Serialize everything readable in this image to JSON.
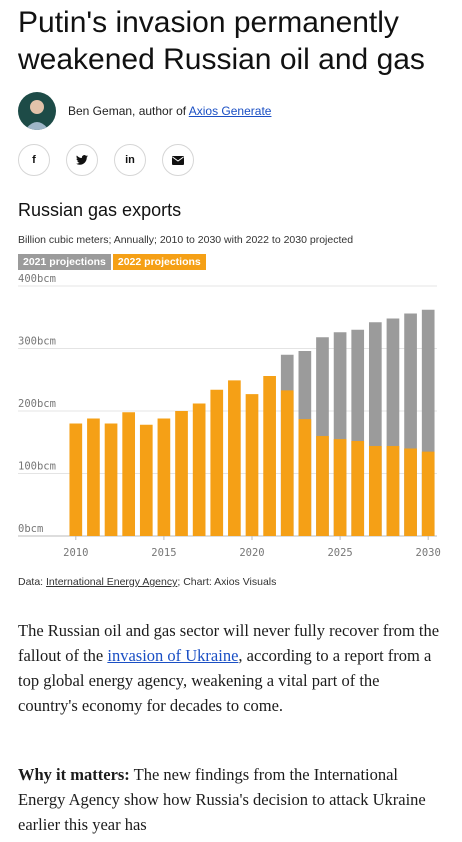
{
  "article": {
    "headline": "Putin's invasion permanently weakened Russian oil and gas",
    "author_prefix": "Ben Geman, author of ",
    "author_link": "Axios Generate"
  },
  "share": {
    "facebook": "f",
    "twitter": "twitter-icon",
    "linkedin": "in",
    "email": "email-icon"
  },
  "chart_block": {
    "title": "Russian gas exports",
    "subtitle": "Billion cubic meters; Annually; 2010 to 2030 with 2022 to 2030 projected",
    "legend_gray": "2021 projections",
    "legend_orange": "2022 projections",
    "source_prefix": "Data: ",
    "source_link": "International Energy Agency",
    "source_suffix": "; Chart: Axios Visuals"
  },
  "chart_data": {
    "type": "bar",
    "title": "Russian gas exports",
    "x": [
      2010,
      2011,
      2012,
      2013,
      2014,
      2015,
      2016,
      2017,
      2018,
      2019,
      2020,
      2021,
      2022,
      2023,
      2024,
      2025,
      2026,
      2027,
      2028,
      2029,
      2030
    ],
    "series": [
      {
        "name": "2022 projections",
        "color": "#f5a016",
        "values": [
          180,
          188,
          180,
          198,
          178,
          188,
          200,
          212,
          234,
          249,
          227,
          256,
          233,
          187,
          160,
          155,
          152,
          144,
          144,
          140,
          135
        ]
      },
      {
        "name": "2021 projections",
        "color": "#9b9b9b",
        "values": [
          null,
          null,
          null,
          null,
          null,
          null,
          null,
          null,
          null,
          null,
          null,
          null,
          290,
          296,
          318,
          326,
          330,
          342,
          348,
          356,
          362
        ]
      }
    ],
    "y_ticks": [
      "0bcm",
      "100bcm",
      "200bcm",
      "300bcm",
      "400bcm"
    ],
    "x_ticks": [
      "2010",
      "2015",
      "2020",
      "2025",
      "2030"
    ],
    "ylim": [
      0,
      400
    ]
  },
  "body": {
    "p1_a": "The Russian oil and gas sector will never fully recover from the fallout of the ",
    "p1_link": "invasion of Ukraine",
    "p1_b": ", according to a report from a top global energy agency, weakening a vital part of the country's economy for decades to come.",
    "p2_bold": "Why it matters:",
    "p2_rest": " The new findings from the International Energy Agency show how Russia's decision to attack Ukraine earlier this year has"
  }
}
